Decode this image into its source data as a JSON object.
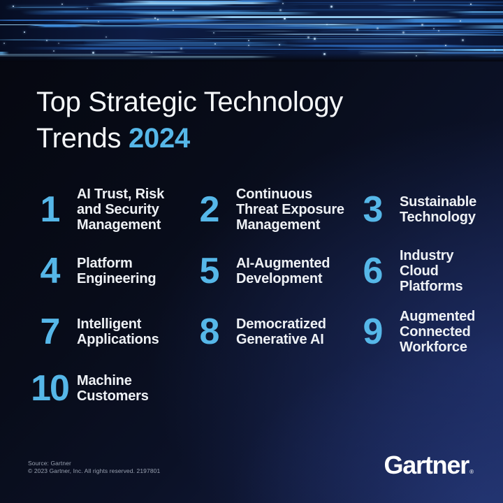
{
  "title": {
    "line1": "Top Strategic Technology",
    "line2_prefix": "Trends",
    "year": "2024"
  },
  "trends": [
    {
      "rank": "1",
      "label": "AI Trust, Risk\nand Security\nManagement"
    },
    {
      "rank": "2",
      "label": "Continuous\nThreat Exposure\nManagement"
    },
    {
      "rank": "3",
      "label": "Sustainable\nTechnology"
    },
    {
      "rank": "4",
      "label": "Platform\nEngineering"
    },
    {
      "rank": "5",
      "label": "AI-Augmented\nDevelopment"
    },
    {
      "rank": "6",
      "label": "Industry\nCloud\nPlatforms"
    },
    {
      "rank": "7",
      "label": "Intelligent\nApplications"
    },
    {
      "rank": "8",
      "label": "Democratized\nGenerative AI"
    },
    {
      "rank": "9",
      "label": "Augmented\nConnected\nWorkforce"
    },
    {
      "rank": "10",
      "label": "Machine\nCustomers"
    }
  ],
  "footer": {
    "source": "Source: Gartner",
    "copyright": "© 2023 Gartner, Inc. All rights reserved. 2197801",
    "logo": "Gartner",
    "trademark": "®"
  },
  "colors": {
    "accent_blue": "#56b7e8",
    "background_dark": "#05070f",
    "background_navy": "#1a2754",
    "banner_base": "#0e1d46",
    "banner_streaks": [
      "#16396f",
      "#1e4a8f",
      "#2d6cc0",
      "#3f8fe0",
      "#63b4ef",
      "#9fd6f9"
    ]
  }
}
